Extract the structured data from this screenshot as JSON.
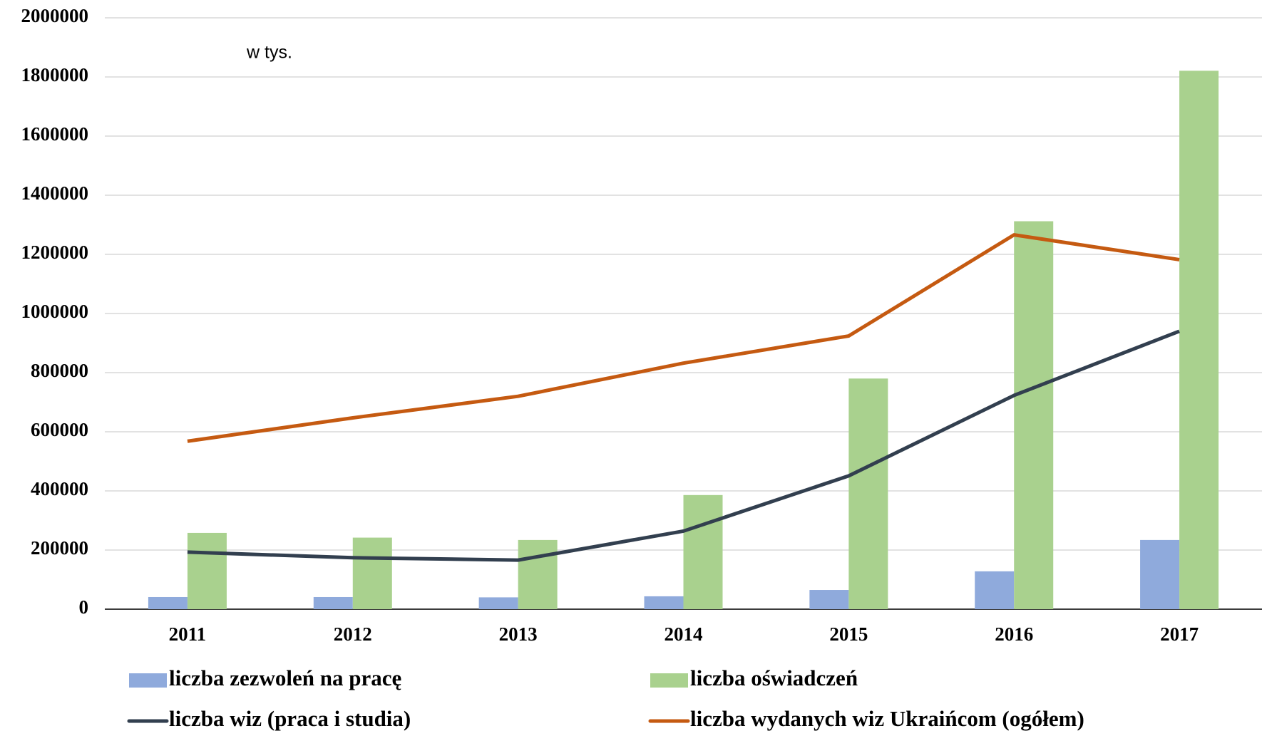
{
  "chart_data": {
    "type": "bar",
    "annotation": "w tys.",
    "categories": [
      "2011",
      "2012",
      "2013",
      "2014",
      "2015",
      "2016",
      "2017"
    ],
    "series": [
      {
        "name": "liczba zezwoleń na pracę",
        "type": "bar",
        "color": "#8faadc",
        "values": [
          41000,
          41000,
          40000,
          43500,
          65000,
          128000,
          234000
        ]
      },
      {
        "name": "liczba oświadczeń",
        "type": "bar",
        "color": "#a9d18e",
        "values": [
          258000,
          242000,
          234000,
          386000,
          780000,
          1312000,
          1821000
        ]
      },
      {
        "name": "liczba wiz (praca i studia)",
        "type": "line",
        "color": "#323f4f",
        "values": [
          193000,
          174000,
          166000,
          264000,
          451000,
          723000,
          940000
        ]
      },
      {
        "name": "liczba wydanych wiz Ukraińcom (ogółem)",
        "type": "line",
        "color": "#c55a11",
        "values": [
          568000,
          647000,
          720000,
          832000,
          924000,
          1266000,
          1182000
        ]
      }
    ],
    "ylim": [
      0,
      2000000
    ],
    "yticks": [
      0,
      200000,
      400000,
      600000,
      800000,
      1000000,
      1200000,
      1400000,
      1600000,
      1800000,
      2000000
    ],
    "grid": true,
    "legend": "bottom"
  }
}
